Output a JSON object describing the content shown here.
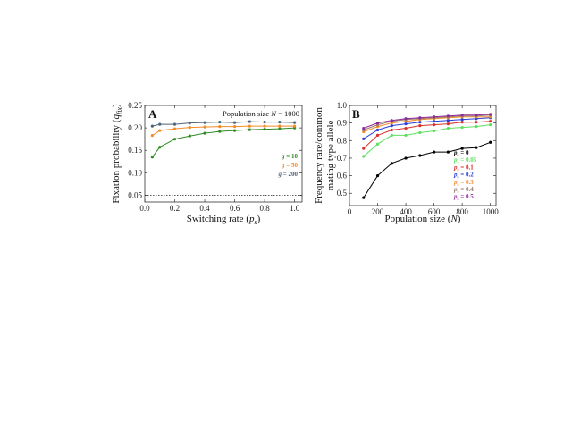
{
  "chart_data": [
    {
      "panel": "A",
      "type": "line",
      "annotation": "Population size N = 1000",
      "xlabel": "Switching rate (p_s)",
      "ylabel": "Fixation probability (q_fix)",
      "xlim": [
        0,
        1.05
      ],
      "ylim": [
        0.035,
        0.25
      ],
      "xticks": [
        "0.0",
        "0.2",
        "0.4",
        "0.6",
        "0.8",
        "1.0"
      ],
      "yticks": [
        "0.05",
        "0.10",
        "0.15",
        "0.20",
        "0.25"
      ],
      "reference_line": {
        "y": 0.05,
        "style": "dotted"
      },
      "legend_position": "right",
      "x": [
        0.05,
        0.1,
        0.2,
        0.3,
        0.4,
        0.5,
        0.6,
        0.7,
        0.8,
        0.9,
        1.0
      ],
      "series": [
        {
          "name": "g = 10",
          "color": "#2e8b22",
          "values": [
            0.135,
            0.157,
            0.175,
            0.182,
            0.188,
            0.192,
            0.194,
            0.196,
            0.197,
            0.198,
            0.2
          ]
        },
        {
          "name": "g = 50",
          "color": "#f28c28",
          "values": [
            0.183,
            0.194,
            0.198,
            0.201,
            0.202,
            0.203,
            0.203,
            0.204,
            0.204,
            0.204,
            0.204
          ]
        },
        {
          "name": "g = 200",
          "color": "#4f6478",
          "values": [
            0.204,
            0.208,
            0.208,
            0.211,
            0.212,
            0.213,
            0.212,
            0.214,
            0.213,
            0.213,
            0.212
          ]
        }
      ]
    },
    {
      "panel": "B",
      "type": "line",
      "xlabel": "Population size (N)",
      "ylabel_line1": "Frequency rare/common",
      "ylabel_line2": "mating type allele",
      "xlim": [
        0,
        1040
      ],
      "ylim": [
        0.43,
        1.0
      ],
      "xticks": [
        "0",
        "200",
        "400",
        "600",
        "800",
        "1000"
      ],
      "yticks": [
        "0.5",
        "0.6",
        "0.7",
        "0.8",
        "0.9",
        "1.0"
      ],
      "legend_position": "bottom-right",
      "x": [
        100,
        200,
        300,
        400,
        500,
        600,
        700,
        800,
        900,
        1000
      ],
      "series": [
        {
          "name": "p_s = 0",
          "color": "#000000",
          "values": [
            0.475,
            0.6,
            0.67,
            0.7,
            0.715,
            0.735,
            0.735,
            0.755,
            0.76,
            0.79
          ]
        },
        {
          "name": "p_s = 0.05",
          "color": "#5ee05e",
          "values": [
            0.71,
            0.78,
            0.83,
            0.83,
            0.845,
            0.855,
            0.87,
            0.875,
            0.88,
            0.89
          ]
        },
        {
          "name": "p_s = 0.1",
          "color": "#d9302c",
          "values": [
            0.755,
            0.83,
            0.86,
            0.87,
            0.885,
            0.89,
            0.895,
            0.905,
            0.905,
            0.91
          ]
        },
        {
          "name": "p_s = 0.2",
          "color": "#2a3fd6",
          "values": [
            0.81,
            0.86,
            0.885,
            0.895,
            0.905,
            0.91,
            0.915,
            0.92,
            0.925,
            0.93
          ]
        },
        {
          "name": "p_s = 0.3",
          "color": "#f28c28",
          "values": [
            0.85,
            0.88,
            0.9,
            0.91,
            0.92,
            0.925,
            0.93,
            0.935,
            0.935,
            0.935
          ]
        },
        {
          "name": "p_s = 0.4",
          "color": "#9a7a6e",
          "values": [
            0.86,
            0.89,
            0.91,
            0.92,
            0.925,
            0.93,
            0.935,
            0.94,
            0.94,
            0.945
          ]
        },
        {
          "name": "p_s = 0.5",
          "color": "#8e2a9a",
          "values": [
            0.87,
            0.9,
            0.915,
            0.925,
            0.93,
            0.935,
            0.94,
            0.945,
            0.945,
            0.95
          ]
        }
      ]
    }
  ]
}
